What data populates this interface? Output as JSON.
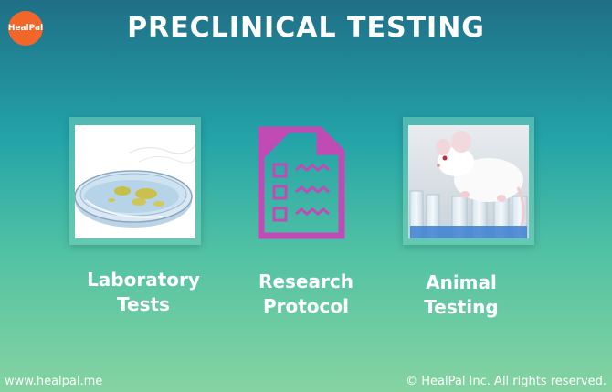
{
  "brand": {
    "logo_text": "HealPal",
    "logo_color": "#f1672a"
  },
  "header": {
    "title": "PRECLINICAL TESTING"
  },
  "cards": [
    {
      "line1": "Laboratory",
      "line2": "Tests",
      "icon": "petri-dish-icon"
    },
    {
      "line1": "Research",
      "line2": "Protocol",
      "icon": "checklist-document-icon",
      "icon_color": "#c04bb5"
    },
    {
      "line1": "Animal",
      "line2": "Testing",
      "icon": "lab-mouse-icon"
    }
  ],
  "footer": {
    "website": "www.healpal.me",
    "copyright": "© HealPal Inc. All rights reserved."
  }
}
